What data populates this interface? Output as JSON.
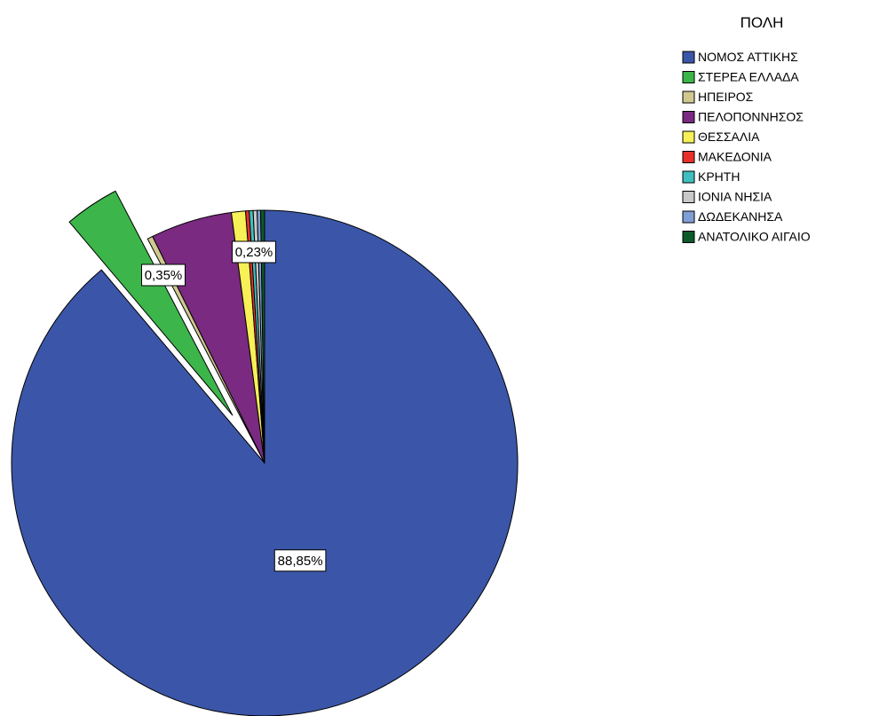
{
  "chart_data": {
    "type": "pie",
    "legend_title": "ΠΟΛΗ",
    "legend_position": "top-right",
    "start_angle_deg": 0,
    "direction": "clockwise",
    "exploded_category": "ΣΤΕΡΕΑ ΕΛΛΑΔΑ",
    "slices": [
      {
        "label": "ΝΟΜΟΣ ΑΤΤΙΚΗΣ",
        "value": 88.85,
        "color": "#3b56a8"
      },
      {
        "label": "ΣΤΕΡΕΑ ΕΛΛΑΔΑ",
        "value": 3.5,
        "color": "#3cb54a"
      },
      {
        "label": "ΗΠΕΙΡΟΣ",
        "value": 0.35,
        "color": "#cfc990"
      },
      {
        "label": "ΠΕΛΟΠΟΝΝΗΣΟΣ",
        "value": 5.2,
        "color": "#7a2a80"
      },
      {
        "label": "ΘΕΣΣΑΛΙΑ",
        "value": 0.9,
        "color": "#f7f056"
      },
      {
        "label": "ΜΑΚΕΔΟΝΙΑ",
        "value": 0.23,
        "color": "#e8302a"
      },
      {
        "label": "ΚΡΗΤΗ",
        "value": 0.25,
        "color": "#3fbfbf"
      },
      {
        "label": "ΙΟΝΙΑ ΝΗΣΙΑ",
        "value": 0.25,
        "color": "#c8c8c8"
      },
      {
        "label": "ΔΩΔΕΚΑΝΗΣΑ",
        "value": 0.22,
        "color": "#7f9ed6"
      },
      {
        "label": "ΑΝΑΤΟΛΙΚΟ ΑΙΓΑΙΟ",
        "value": 0.25,
        "color": "#0d5a2a"
      }
    ],
    "data_labels": [
      {
        "slice": "ΝΟΜΟΣ ΑΤΤΙΚΗΣ",
        "text": "88,85%"
      },
      {
        "slice": "ΗΠΕΙΡΟΣ",
        "text": "0,35%"
      },
      {
        "slice": "ΜΑΚΕΔΟΝΙΑ",
        "text": "0,23%"
      }
    ]
  }
}
